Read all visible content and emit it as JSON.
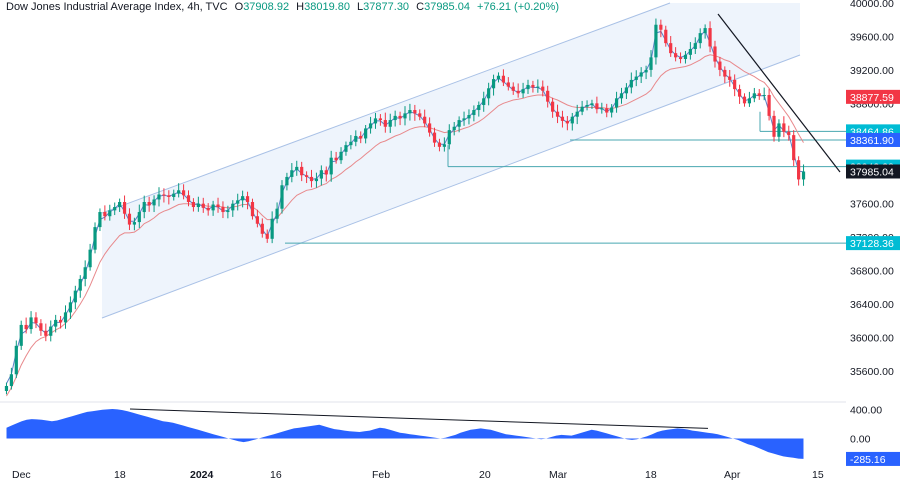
{
  "header": {
    "title": "Dow Jones Industrial Average Index, 4h, TVC",
    "open_label": "O",
    "open": "37908.92",
    "high_label": "H",
    "high": "38019.80",
    "low_label": "L",
    "low": "37877.30",
    "close_label": "C",
    "close": "37985.04",
    "change": "+76.21 (+0.20%)"
  },
  "colors": {
    "up": "#089981",
    "down": "#f23645",
    "ema_fast": "#5b7fc7",
    "ema_slow": "#e8898c",
    "channel": "#a9c1e6",
    "channel_fill": "#eef4fc",
    "level": "#48a7b0",
    "trendline": "#131722",
    "oscillator": "#2962ff",
    "badge_blue": "#2962ff",
    "badge_red": "#f23645",
    "badge_teal": "#00bcd4",
    "badge_dark": "#131722"
  },
  "chart_data": [
    {
      "type": "candlestick",
      "ylim": [
        35300,
        40000
      ],
      "y_ticks": [
        "40000.00",
        "39600.00",
        "39200.00",
        "38800.00",
        "38400.00",
        "38000.00",
        "37600.00",
        "37200.00",
        "36800.00",
        "36400.00",
        "36000.00",
        "35600.00"
      ],
      "x_tick_labels": [
        "Dec",
        "18",
        "2024",
        "16",
        "Feb",
        "20",
        "Mar",
        "18",
        "Apr",
        "15"
      ],
      "series": [
        {
          "name": "OHLC",
          "close": [
            35420,
            35560,
            35900,
            36150,
            36100,
            36240,
            36170,
            36080,
            36020,
            36130,
            36210,
            36180,
            36300,
            36420,
            36560,
            36700,
            36840,
            37050,
            37320,
            37500,
            37450,
            37520,
            37560,
            37620,
            37480,
            37350,
            37380,
            37500,
            37620,
            37580,
            37650,
            37710,
            37700,
            37680,
            37720,
            37760,
            37700,
            37620,
            37560,
            37600,
            37550,
            37520,
            37590,
            37560,
            37500,
            37520,
            37600,
            37640,
            37690,
            37620,
            37450,
            37360,
            37240,
            37180,
            37420,
            37540,
            37820,
            37920,
            38000,
            38040,
            37940,
            37920,
            37870,
            37900,
            38000,
            37950,
            38150,
            38120,
            38220,
            38300,
            38340,
            38410,
            38380,
            38500,
            38560,
            38620,
            38600,
            38520,
            38600,
            38650,
            38620,
            38680,
            38720,
            38680,
            38640,
            38560,
            38450,
            38330,
            38280,
            38310,
            38480,
            38520,
            38600,
            38620,
            38660,
            38720,
            38780,
            38860,
            38980,
            39090,
            39130,
            39050,
            39000,
            38950,
            38920,
            38970,
            39020,
            38990,
            39000,
            38950,
            38820,
            38700,
            38640,
            38590,
            38560,
            38640,
            38700,
            38760,
            38780,
            38800,
            38730,
            38740,
            38690,
            38750,
            38860,
            38920,
            38990,
            39080,
            39120,
            39170,
            39200,
            39350,
            39740,
            39680,
            39520,
            39400,
            39350,
            39330,
            39380,
            39450,
            39520,
            39640,
            39700,
            39480,
            39300,
            39200,
            39120,
            39080,
            38970,
            38880,
            38800,
            38860,
            38920,
            38890,
            38900,
            38650,
            38400,
            38560,
            38460,
            38420,
            38120,
            37890,
            37985
          ]
        },
        {
          "name": "EMA fast",
          "values": [
            35450,
            35560,
            35830,
            36040,
            36080,
            36180,
            36170,
            36100,
            36050,
            36110,
            36180,
            36180,
            36270,
            36370,
            36500,
            36630,
            36770,
            36960,
            37210,
            37410,
            37440,
            37500,
            37540,
            37600,
            37510,
            37390,
            37390,
            37480,
            37590,
            37580,
            37630,
            37690,
            37700,
            37690,
            37710,
            37740,
            37710,
            37650,
            37590,
            37600,
            37560,
            37530,
            37570,
            37560,
            37510,
            37520,
            37580,
            37620,
            37670,
            37630,
            37500,
            37400,
            37290,
            37210,
            37360,
            37480,
            37730,
            37860,
            37960,
            38020,
            37960,
            37930,
            37890,
            37900,
            37970,
            37950,
            38100,
            38110,
            38190,
            38270,
            38320,
            38390,
            38380,
            38470,
            38530,
            38590,
            38590,
            38540,
            38580,
            38630,
            38620,
            38660,
            38700,
            38680,
            38650,
            38580,
            38490,
            38380,
            38310,
            38310,
            38430,
            38490,
            38570,
            38600,
            38640,
            38700,
            38760,
            38830,
            38940,
            39050,
            39100,
            39060,
            39010,
            38960,
            38930,
            38960,
            39000,
            38990,
            38990,
            38960,
            38850,
            38740,
            38670,
            38610,
            38570,
            38620,
            38680,
            38740,
            38770,
            38790,
            38740,
            38740,
            38700,
            38740,
            38830,
            38900,
            38960,
            39050,
            39100,
            39150,
            39190,
            39310,
            39640,
            39660,
            39550,
            39440,
            39380,
            39350,
            39370,
            39430,
            39490,
            39600,
            39670,
            39520,
            39350,
            39240,
            39150,
            39100,
            39000,
            38910,
            38830,
            38850,
            38900,
            38890,
            38890,
            38700,
            38480,
            38540,
            38470,
            38430,
            38200,
            37990,
            37980
          ]
        },
        {
          "name": "EMA slow",
          "values": [
            35300,
            35400,
            35530,
            35670,
            35780,
            35880,
            35950,
            35990,
            36010,
            36050,
            36090,
            36120,
            36170,
            36230,
            36310,
            36400,
            36500,
            36620,
            36760,
            36900,
            37000,
            37080,
            37150,
            37220,
            37250,
            37250,
            37260,
            37300,
            37360,
            37390,
            37430,
            37480,
            37510,
            37530,
            37560,
            37590,
            37600,
            37600,
            37590,
            37590,
            37580,
            37570,
            37570,
            37570,
            37560,
            37550,
            37560,
            37570,
            37590,
            37590,
            37560,
            37520,
            37460,
            37410,
            37410,
            37430,
            37500,
            37570,
            37640,
            37700,
            37730,
            37760,
            37770,
            37790,
            37820,
            37840,
            37890,
            37920,
            37960,
            38010,
            38050,
            38100,
            38140,
            38190,
            38240,
            38290,
            38330,
            38350,
            38380,
            38410,
            38430,
            38460,
            38490,
            38510,
            38520,
            38520,
            38510,
            38490,
            38470,
            38450,
            38460,
            38460,
            38480,
            38500,
            38520,
            38550,
            38580,
            38620,
            38670,
            38720,
            38770,
            38800,
            38820,
            38840,
            38850,
            38860,
            38880,
            38890,
            38900,
            38900,
            38890,
            38860,
            38840,
            38810,
            38780,
            38760,
            38750,
            38750,
            38750,
            38750,
            38750,
            38750,
            38740,
            38740,
            38750,
            38770,
            38790,
            38820,
            38850,
            38880,
            38910,
            38960,
            39050,
            39130,
            39180,
            39210,
            39220,
            39230,
            39240,
            39260,
            39290,
            39320,
            39360,
            39380,
            39370,
            39350,
            39320,
            39300,
            39260,
            39220,
            39180,
            39150,
            39120,
            39080,
            39050,
            38980,
            38880,
            38800,
            38720,
            38640,
            38540,
            38430,
            38330
          ]
        }
      ],
      "channel": {
        "upper_start": [
          102,
          37620
        ],
        "upper_end": [
          670,
          40000
        ],
        "lower_start": [
          102,
          36400
        ],
        "lower_end": [
          162,
          39300
        ]
      },
      "levels": [
        {
          "value": 38464.86,
          "label": "38464.86",
          "color": "#48a7b0"
        },
        {
          "value": 38361.9,
          "label": "38361.90",
          "color": "#48a7b0"
        },
        {
          "value": 38043.28,
          "label": "38043.28",
          "color": "#48a7b0"
        },
        {
          "value": 37128.36,
          "label": "37128.36",
          "color": "#48a7b0"
        }
      ],
      "badges": [
        {
          "label": "38877.59",
          "value": 38877.59,
          "bg": "#f23645"
        },
        {
          "label": "38464.86",
          "value": 38464.86,
          "bg": "#00bcd4"
        },
        {
          "label": "38361.90",
          "value": 38361.9,
          "bg": "#2962ff"
        },
        {
          "label": "38043.28",
          "value": 38043.28,
          "bg": "#00bcd4"
        },
        {
          "label": "37985.04",
          "value": 37985.04,
          "bg": "#131722"
        },
        {
          "label": "37128.36",
          "value": 37128.36,
          "bg": "#00bcd4"
        }
      ]
    },
    {
      "type": "area",
      "ylim": [
        -300,
        480
      ],
      "y_ticks": [
        "400.00",
        "0.00"
      ],
      "series": [
        {
          "name": "Oscillator",
          "values": [
            150,
            180,
            210,
            240,
            260,
            270,
            265,
            260,
            250,
            240,
            250,
            270,
            290,
            310,
            330,
            350,
            370,
            380,
            390,
            400,
            405,
            410,
            405,
            395,
            380,
            360,
            340,
            320,
            300,
            280,
            260,
            240,
            230,
            220,
            200,
            180,
            160,
            140,
            120,
            100,
            80,
            60,
            40,
            20,
            0,
            -20,
            -40,
            -50,
            -40,
            -20,
            0,
            20,
            40,
            60,
            80,
            100,
            120,
            140,
            150,
            160,
            170,
            180,
            190,
            170,
            150,
            130,
            120,
            110,
            100,
            95,
            90,
            100,
            110,
            130,
            150,
            140,
            120,
            100,
            80,
            70,
            60,
            50,
            40,
            30,
            20,
            10,
            0,
            10,
            30,
            50,
            80,
            100,
            120,
            130,
            140,
            130,
            120,
            100,
            80,
            60,
            50,
            40,
            30,
            20,
            10,
            0,
            -10,
            0,
            20,
            40,
            50,
            45,
            40,
            60,
            80,
            100,
            120,
            110,
            90,
            70,
            50,
            30,
            10,
            -10,
            -20,
            -10,
            10,
            30,
            60,
            90,
            110,
            120,
            130,
            140,
            135,
            125,
            110,
            100,
            90,
            80,
            70,
            60,
            40,
            20,
            0,
            -20,
            -50,
            -80,
            -100,
            -130,
            -160,
            -190,
            -210,
            -230,
            -250,
            -260,
            -270,
            -280,
            -285
          ]
        }
      ],
      "badge": {
        "label": "-285.16",
        "value": -285.16,
        "bg": "#2962ff"
      }
    }
  ]
}
